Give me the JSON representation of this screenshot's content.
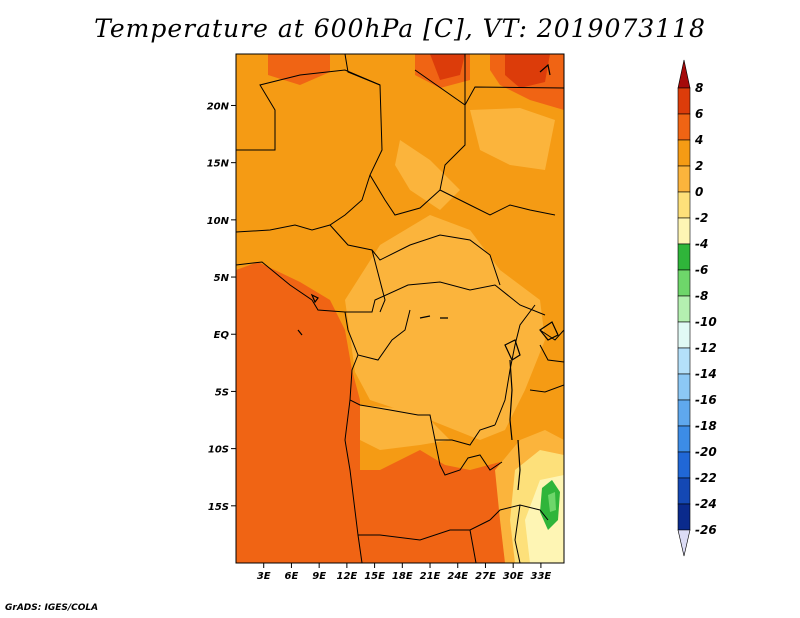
{
  "title": "Temperature at 600hPa [C], VT: 2019073118",
  "credit": "GrADS: IGES/COLA",
  "map": {
    "lon_range": [
      0,
      35.5
    ],
    "lat_range": [
      -20,
      24.5
    ],
    "lat_ticks": [
      {
        "value": 20,
        "label": "20N"
      },
      {
        "value": 15,
        "label": "15N"
      },
      {
        "value": 10,
        "label": "10N"
      },
      {
        "value": 5,
        "label": "5N"
      },
      {
        "value": 0,
        "label": "EQ"
      },
      {
        "value": -5,
        "label": "5S"
      },
      {
        "value": -10,
        "label": "10S"
      },
      {
        "value": -15,
        "label": "15S"
      }
    ],
    "lon_ticks": [
      {
        "value": 3,
        "label": "3E"
      },
      {
        "value": 6,
        "label": "6E"
      },
      {
        "value": 9,
        "label": "9E"
      },
      {
        "value": 12,
        "label": "12E"
      },
      {
        "value": 15,
        "label": "15E"
      },
      {
        "value": 18,
        "label": "18E"
      },
      {
        "value": 21,
        "label": "21E"
      },
      {
        "value": 24,
        "label": "24E"
      },
      {
        "value": 27,
        "label": "27E"
      },
      {
        "value": 30,
        "label": "30E"
      },
      {
        "value": 33,
        "label": "33E"
      }
    ]
  },
  "colorbar": {
    "levels": [
      {
        "label": "8",
        "color": "#a50a0a"
      },
      {
        "label": "6",
        "color": "#dc3c0a"
      },
      {
        "label": "4",
        "color": "#f06414"
      },
      {
        "label": "2",
        "color": "#f59b14"
      },
      {
        "label": "0",
        "color": "#fbb43c"
      },
      {
        "label": "-2",
        "color": "#fde07a"
      },
      {
        "label": "-4",
        "color": "#fef5b4"
      },
      {
        "label": "-6",
        "color": "#2fb53a"
      },
      {
        "label": "-8",
        "color": "#6ed66a"
      },
      {
        "label": "-10",
        "color": "#b4f0b0"
      },
      {
        "label": "-12",
        "color": "#e1faf5"
      },
      {
        "label": "-14",
        "color": "#b4e0fa"
      },
      {
        "label": "-16",
        "color": "#8cc8f5"
      },
      {
        "label": "-18",
        "color": "#5fa8ee"
      },
      {
        "label": "-20",
        "color": "#3c8ce6"
      },
      {
        "label": "-22",
        "color": "#2067d6"
      },
      {
        "label": "-24",
        "color": "#1448b4"
      },
      {
        "label": "-26",
        "color": "#0a2a8c"
      }
    ],
    "bottom_color": "#0a0a5a",
    "below_color": "#dcdcf5"
  }
}
